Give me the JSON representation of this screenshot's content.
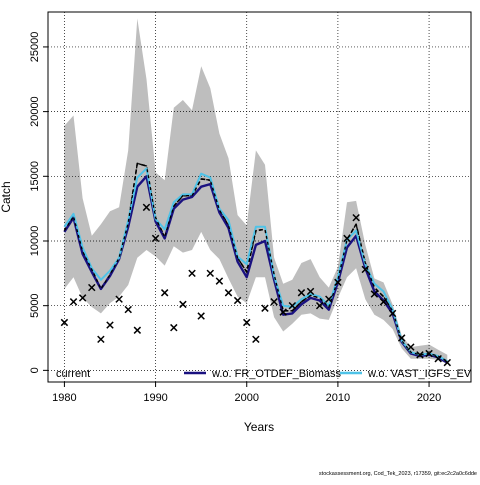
{
  "chart_data": {
    "type": "line",
    "xlabel": "Years",
    "ylabel": "Catch",
    "xlim": [
      1978.2,
      2024.6
    ],
    "ylim": [
      -900,
      27700
    ],
    "x_ticks": [
      1980,
      1990,
      2000,
      2010,
      2020
    ],
    "y_ticks": [
      0,
      5000,
      10000,
      15000,
      20000,
      25000
    ],
    "grid": true,
    "legend_position": "bottom",
    "footer_text": "stockassessment.org, Cod_Tek_2023, r17359, git:ec2c2a0c6dde",
    "colors": {
      "band": "#bebebe",
      "current": "#000000",
      "fr_otdef": "#1a1180",
      "vast_igfs": "#4fc3e8",
      "points": "#000000"
    },
    "years": [
      1980,
      1981,
      1982,
      1983,
      1984,
      1985,
      1986,
      1987,
      1988,
      1989,
      1990,
      1991,
      1992,
      1993,
      1994,
      1995,
      1996,
      1997,
      1998,
      1999,
      2000,
      2001,
      2002,
      2003,
      2004,
      2005,
      2006,
      2007,
      2008,
      2009,
      2010,
      2011,
      2012,
      2013,
      2014,
      2015,
      2016,
      2017,
      2018,
      2019,
      2020,
      2021,
      2022
    ],
    "band": {
      "upper": [
        18900,
        19700,
        13300,
        10400,
        11300,
        12300,
        12600,
        17000,
        27200,
        22500,
        15300,
        14700,
        20300,
        20900,
        20100,
        23500,
        21800,
        18300,
        16400,
        12000,
        11200,
        17000,
        15900,
        8700,
        6700,
        7000,
        8300,
        8600,
        7200,
        6400,
        8000,
        13000,
        13100,
        9700,
        7100,
        6800,
        5100,
        2700,
        1800,
        1900,
        2000,
        1600,
        1200
      ],
      "lower": [
        6300,
        7200,
        5600,
        4900,
        4400,
        5200,
        5700,
        6600,
        8700,
        9300,
        8800,
        8100,
        9600,
        9100,
        9300,
        10700,
        9300,
        8600,
        7100,
        5700,
        5200,
        7200,
        7200,
        4100,
        3000,
        3600,
        4300,
        4400,
        4000,
        3900,
        5600,
        7200,
        7900,
        5500,
        4300,
        3900,
        3200,
        1700,
        900,
        900,
        900,
        800,
        500
      ],
      "name": ""
    },
    "series": [
      {
        "name": "current",
        "style": "dashed",
        "values": [
          10800,
          11900,
          9200,
          7800,
          6300,
          7400,
          8700,
          11400,
          16000,
          15800,
          11800,
          10300,
          12700,
          13500,
          13500,
          14800,
          14700,
          12400,
          11200,
          8700,
          7600,
          10800,
          10900,
          7400,
          4600,
          4600,
          5300,
          5800,
          5600,
          4900,
          7000,
          10100,
          11300,
          8300,
          6400,
          5700,
          4600,
          2300,
          1400,
          1200,
          1300,
          1100,
          700
        ]
      },
      {
        "name": "w.o. FR_OTDEF_Biomass",
        "style": "solid",
        "values": [
          10700,
          11800,
          9000,
          7600,
          6300,
          7300,
          8600,
          11100,
          14200,
          15000,
          11500,
          10200,
          12500,
          13200,
          13400,
          14200,
          14400,
          12200,
          11000,
          8400,
          7200,
          9700,
          10000,
          7000,
          4300,
          4400,
          5100,
          5600,
          5400,
          4700,
          6800,
          9500,
          10400,
          7900,
          6100,
          5400,
          4400,
          2200,
          1300,
          1100,
          1200,
          1000,
          600
        ]
      },
      {
        "name": "w.o. VAST_IGFS_EV",
        "style": "solid",
        "values": [
          11100,
          12100,
          9500,
          7900,
          7000,
          7700,
          8700,
          11600,
          14900,
          15600,
          11700,
          10900,
          13000,
          13600,
          13600,
          15200,
          14900,
          12500,
          11600,
          8800,
          8200,
          11100,
          11100,
          7300,
          5000,
          4900,
          5500,
          5900,
          5700,
          5000,
          7200,
          10100,
          10800,
          8200,
          6700,
          6100,
          4700,
          2300,
          1400,
          1200,
          1300,
          1100,
          700
        ]
      }
    ],
    "observations": {
      "x": [
        1980,
        1981,
        1982,
        1983,
        1984,
        1985,
        1986,
        1987,
        1988,
        1989,
        1990,
        1991,
        1992,
        1993,
        1994,
        1995,
        1996,
        1997,
        1998,
        1999,
        2000,
        2001,
        2002,
        2003,
        2004,
        2005,
        2006,
        2007,
        2008,
        2009,
        2010,
        2011,
        2012,
        2013,
        2014,
        2015,
        2016,
        2017,
        2018,
        2019,
        2020,
        2021,
        2022
      ],
      "y": [
        3700,
        5300,
        5600,
        6400,
        2400,
        3500,
        5500,
        4700,
        3100,
        12600,
        10200,
        6000,
        3300,
        5100,
        7500,
        4200,
        7500,
        6900,
        6000,
        5400,
        3700,
        2400,
        4800,
        5300,
        4500,
        5000,
        6000,
        6100,
        5000,
        5500,
        6800,
        10200,
        11800,
        7800,
        5900,
        5300,
        4400,
        2500,
        1800,
        1200,
        1300,
        900,
        600
      ]
    }
  }
}
